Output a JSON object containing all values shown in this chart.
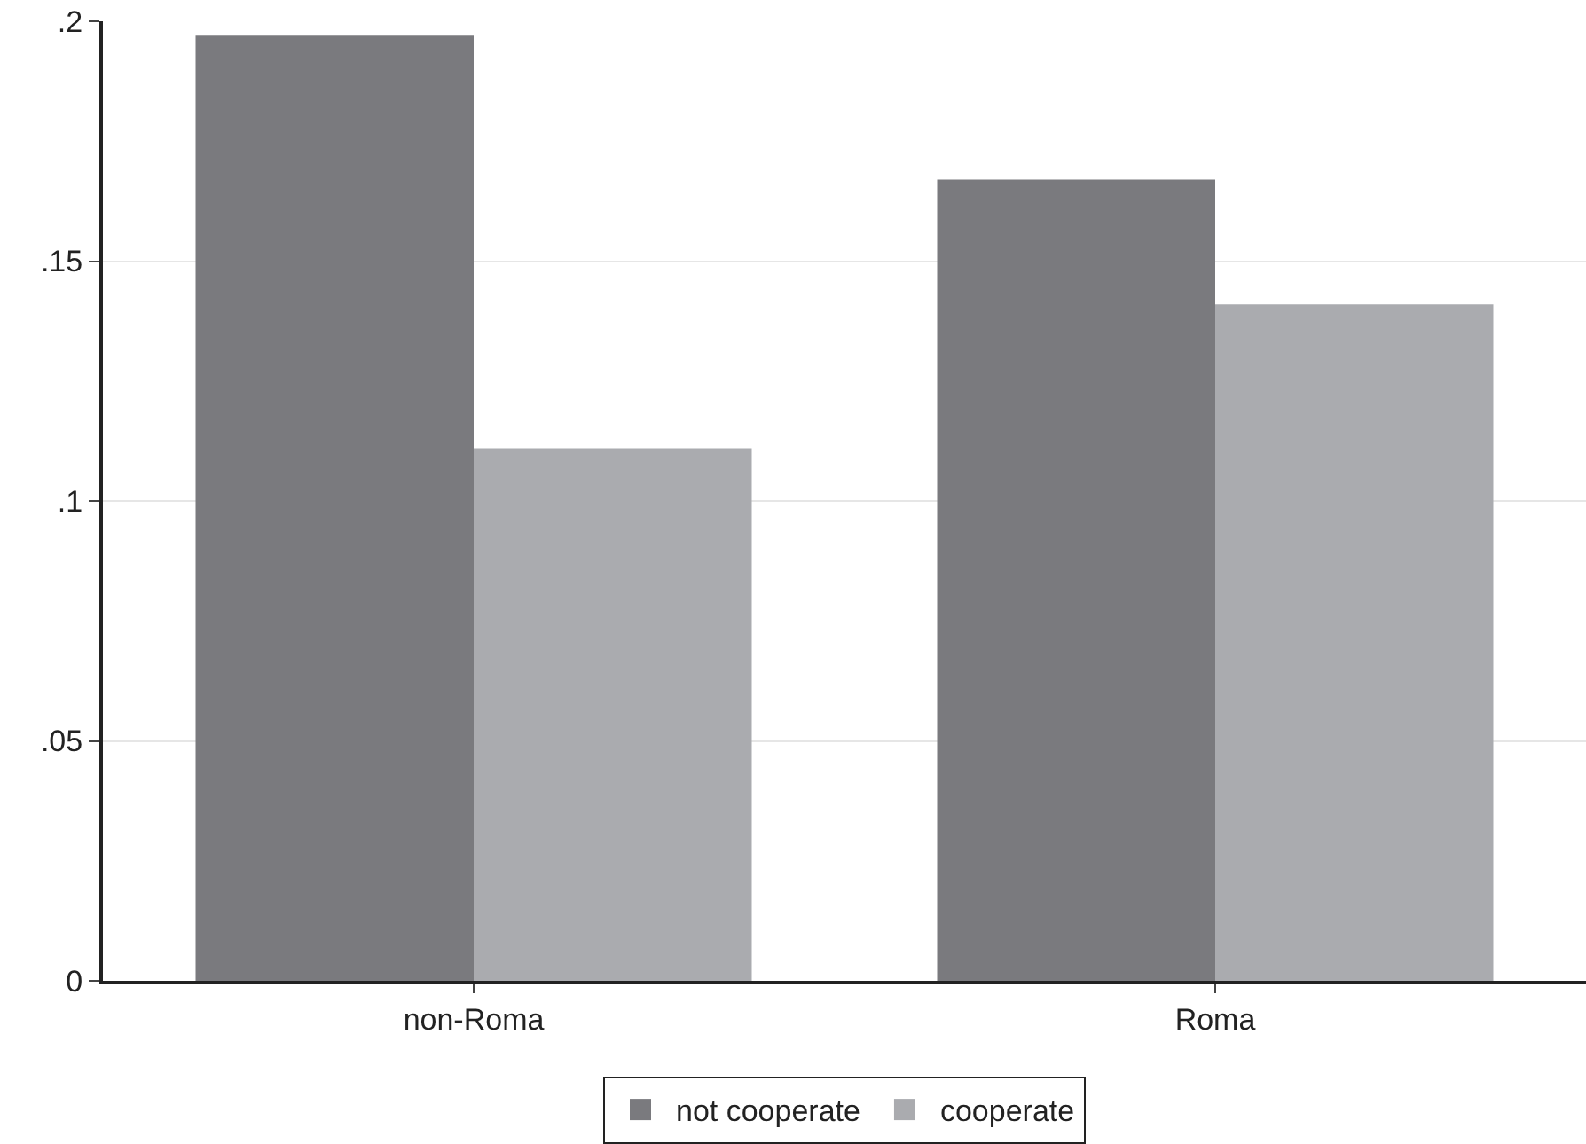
{
  "chart_data": {
    "type": "bar",
    "categories": [
      "non-Roma",
      "Roma"
    ],
    "series": [
      {
        "name": "not cooperate",
        "color": "#7a7a7e",
        "values": [
          0.197,
          0.167
        ]
      },
      {
        "name": "cooperate",
        "color": "#aaabaf",
        "values": [
          0.111,
          0.141
        ]
      }
    ],
    "ylim": [
      0,
      0.2
    ],
    "yticks": [
      0,
      {
        "value": 0.05,
        "label": ".05"
      },
      {
        "value": 0.1,
        "label": ".1"
      },
      {
        "value": 0.15,
        "label": ".15"
      },
      {
        "value": 0.2,
        "label": ".2"
      }
    ],
    "grid": "y",
    "legend": "bottom"
  }
}
